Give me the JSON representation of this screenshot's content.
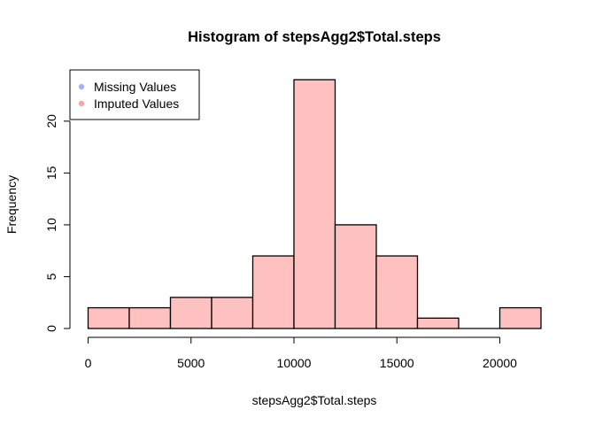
{
  "chart_data": {
    "type": "bar",
    "title": "Histogram of stepsAgg2$Total.steps",
    "xlabel": "stepsAgg2$Total.steps",
    "ylabel": "Frequency",
    "bin_width": 2000,
    "bins": [
      {
        "x0": 0,
        "x1": 2000,
        "value": 2
      },
      {
        "x0": 2000,
        "x1": 4000,
        "value": 2
      },
      {
        "x0": 4000,
        "x1": 6000,
        "value": 3
      },
      {
        "x0": 6000,
        "x1": 8000,
        "value": 3
      },
      {
        "x0": 8000,
        "x1": 10000,
        "value": 7
      },
      {
        "x0": 10000,
        "x1": 12000,
        "value": 24
      },
      {
        "x0": 12000,
        "x1": 14000,
        "value": 10
      },
      {
        "x0": 14000,
        "x1": 16000,
        "value": 7
      },
      {
        "x0": 16000,
        "x1": 18000,
        "value": 1
      },
      {
        "x0": 18000,
        "x1": 20000,
        "value": 0
      },
      {
        "x0": 20000,
        "x1": 22000,
        "value": 2
      }
    ],
    "xlim": [
      0,
      22000
    ],
    "ylim": [
      0,
      24
    ],
    "x_ticks": [
      0,
      5000,
      10000,
      15000,
      20000
    ],
    "x_tick_labels": [
      "0",
      "5000",
      "10000",
      "15000",
      "20000"
    ],
    "y_ticks": [
      0,
      5,
      10,
      15,
      20
    ],
    "y_tick_labels": [
      "0",
      "5",
      "10",
      "15",
      "20"
    ],
    "grid": false,
    "bar_fill": "#ffc0c0",
    "bar_stroke": "#000000",
    "legend": {
      "placement": "top-left",
      "entries": [
        {
          "label": "Missing Values",
          "color": "#a8b4f0"
        },
        {
          "label": "Imputed Values",
          "color": "#f4a8a8"
        }
      ]
    }
  }
}
